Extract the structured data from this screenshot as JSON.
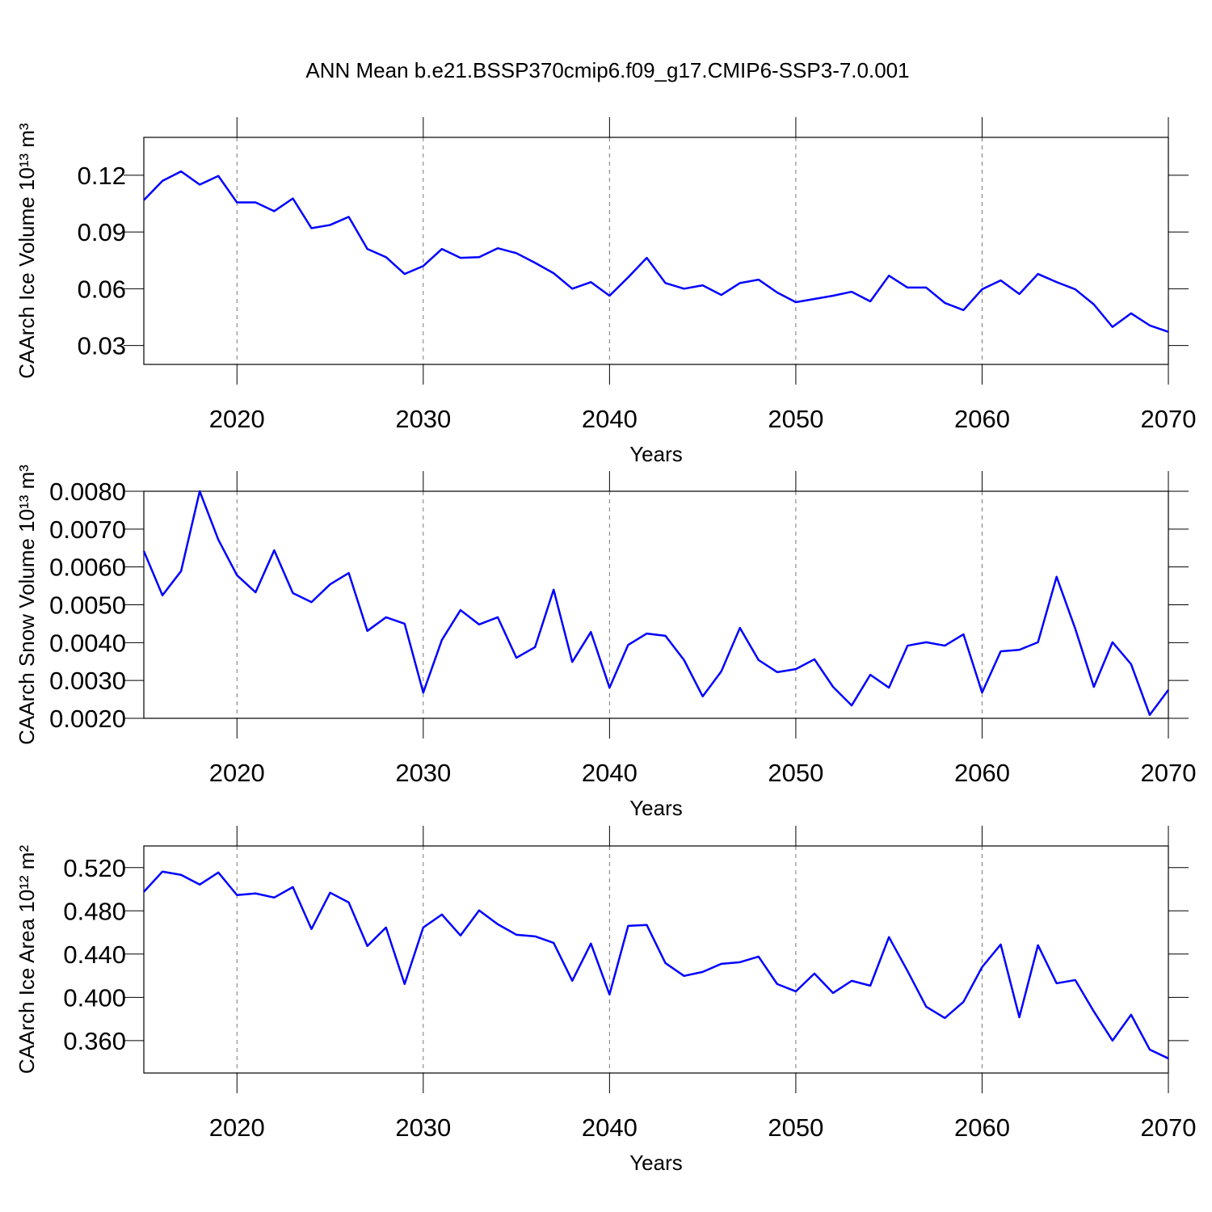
{
  "title": "ANN Mean b.e21.BSSP370cmip6.f09_g17.CMIP6-SSP3-7.0.001",
  "chart_data": [
    {
      "type": "line",
      "ylabel": "CAArch Ice Volume 10¹³ m³",
      "xlabel": "Years",
      "color": "#0000ff",
      "grid": true,
      "xlim": [
        2015,
        2070
      ],
      "xticks": [
        2020,
        2030,
        2040,
        2050,
        2060,
        2070
      ],
      "ylim": [
        0.02,
        0.14
      ],
      "yticks": [
        {
          "value": 0.03,
          "label": "0.03"
        },
        {
          "value": 0.06,
          "label": "0.06"
        },
        {
          "value": 0.09,
          "label": "0.09"
        },
        {
          "value": 0.12,
          "label": "0.12"
        }
      ],
      "x": [
        2015,
        2016,
        2017,
        2018,
        2019,
        2020,
        2021,
        2022,
        2023,
        2024,
        2025,
        2026,
        2027,
        2028,
        2029,
        2030,
        2031,
        2032,
        2033,
        2034,
        2035,
        2036,
        2037,
        2038,
        2039,
        2040,
        2041,
        2042,
        2043,
        2044,
        2045,
        2046,
        2047,
        2048,
        2049,
        2050,
        2051,
        2052,
        2053,
        2054,
        2055,
        2056,
        2057,
        2058,
        2059,
        2060,
        2061,
        2062,
        2063,
        2064,
        2065,
        2066,
        2067,
        2068,
        2069,
        2070
      ],
      "values": [
        0.1068,
        0.117,
        0.122,
        0.115,
        0.1196,
        0.1056,
        0.1056,
        0.101,
        0.1077,
        0.092,
        0.0937,
        0.098,
        0.081,
        0.0767,
        0.0678,
        0.072,
        0.081,
        0.0763,
        0.0767,
        0.0814,
        0.0788,
        0.0737,
        0.0682,
        0.06,
        0.0635,
        0.0563,
        0.066,
        0.0763,
        0.063,
        0.06,
        0.0618,
        0.0567,
        0.063,
        0.0648,
        0.058,
        0.0529,
        0.0546,
        0.0563,
        0.0584,
        0.0533,
        0.0669,
        0.0606,
        0.0606,
        0.0525,
        0.0487,
        0.0597,
        0.0644,
        0.0572,
        0.0678,
        0.0635,
        0.0597,
        0.0517,
        0.0398,
        0.047,
        0.0406,
        0.0372
      ]
    },
    {
      "type": "line",
      "ylabel": "CAArch Snow Volume 10¹³ m³",
      "xlabel": "Years",
      "color": "#0000ff",
      "grid": true,
      "xlim": [
        2015,
        2070
      ],
      "xticks": [
        2020,
        2030,
        2040,
        2050,
        2060,
        2070
      ],
      "ylim": [
        0.002,
        0.008
      ],
      "yticks": [
        {
          "value": 0.002,
          "label": "0.0020"
        },
        {
          "value": 0.003,
          "label": "0.0030"
        },
        {
          "value": 0.004,
          "label": "0.0040"
        },
        {
          "value": 0.005,
          "label": "0.0050"
        },
        {
          "value": 0.006,
          "label": "0.0060"
        },
        {
          "value": 0.007,
          "label": "0.0070"
        },
        {
          "value": 0.008,
          "label": "0.0080"
        }
      ],
      "x": [
        2015,
        2016,
        2017,
        2018,
        2019,
        2020,
        2021,
        2022,
        2023,
        2024,
        2025,
        2026,
        2027,
        2028,
        2029,
        2030,
        2031,
        2032,
        2033,
        2034,
        2035,
        2036,
        2037,
        2038,
        2039,
        2040,
        2041,
        2042,
        2043,
        2044,
        2045,
        2046,
        2047,
        2048,
        2049,
        2050,
        2051,
        2052,
        2053,
        2054,
        2055,
        2056,
        2057,
        2058,
        2059,
        2060,
        2061,
        2062,
        2063,
        2064,
        2065,
        2066,
        2067,
        2068,
        2069,
        2070
      ],
      "values": [
        0.00642,
        0.00525,
        0.00589,
        0.008,
        0.00672,
        0.00578,
        0.00533,
        0.00644,
        0.00531,
        0.00507,
        0.00554,
        0.00584,
        0.00431,
        0.00467,
        0.0045,
        0.00268,
        0.00407,
        0.00486,
        0.00448,
        0.00467,
        0.0036,
        0.00388,
        0.0054,
        0.00349,
        0.00428,
        0.00281,
        0.00394,
        0.00424,
        0.00418,
        0.00354,
        0.00258,
        0.00324,
        0.00439,
        0.00354,
        0.00322,
        0.0033,
        0.00356,
        0.00283,
        0.00234,
        0.00315,
        0.00281,
        0.00392,
        0.00401,
        0.00392,
        0.00422,
        0.00268,
        0.00377,
        0.00381,
        0.00401,
        0.00574,
        0.00437,
        0.00283,
        0.00401,
        0.00343,
        0.00209,
        0.00275
      ]
    },
    {
      "type": "line",
      "ylabel": "CAArch Ice Area 10¹² m²",
      "xlabel": "Years",
      "color": "#0000ff",
      "grid": true,
      "xlim": [
        2015,
        2070
      ],
      "xticks": [
        2020,
        2030,
        2040,
        2050,
        2060,
        2070
      ],
      "ylim": [
        0.33,
        0.54
      ],
      "yticks": [
        {
          "value": 0.36,
          "label": "0.360"
        },
        {
          "value": 0.4,
          "label": "0.400"
        },
        {
          "value": 0.44,
          "label": "0.440"
        },
        {
          "value": 0.48,
          "label": "0.480"
        },
        {
          "value": 0.52,
          "label": "0.520"
        }
      ],
      "x": [
        2015,
        2016,
        2017,
        2018,
        2019,
        2020,
        2021,
        2022,
        2023,
        2024,
        2025,
        2026,
        2027,
        2028,
        2029,
        2030,
        2031,
        2032,
        2033,
        2034,
        2035,
        2036,
        2037,
        2038,
        2039,
        2040,
        2041,
        2042,
        2043,
        2044,
        2045,
        2046,
        2047,
        2048,
        2049,
        2050,
        2051,
        2052,
        2053,
        2054,
        2055,
        2056,
        2057,
        2058,
        2059,
        2060,
        2061,
        2062,
        2063,
        2064,
        2065,
        2066,
        2067,
        2068,
        2069,
        2070
      ],
      "values": [
        0.4976,
        0.5163,
        0.5133,
        0.5043,
        0.5155,
        0.4946,
        0.4961,
        0.4923,
        0.502,
        0.4632,
        0.4968,
        0.4878,
        0.4475,
        0.4646,
        0.4123,
        0.4646,
        0.4766,
        0.4572,
        0.4804,
        0.4676,
        0.4579,
        0.4564,
        0.4504,
        0.4153,
        0.4497,
        0.4026,
        0.4661,
        0.4669,
        0.4317,
        0.4198,
        0.4235,
        0.431,
        0.4325,
        0.4377,
        0.4123,
        0.4055,
        0.422,
        0.404,
        0.4153,
        0.4108,
        0.4557,
        0.4243,
        0.3913,
        0.3809,
        0.3958,
        0.428,
        0.4489,
        0.3816,
        0.4482,
        0.413,
        0.416,
        0.3869,
        0.36,
        0.3839,
        0.3517,
        0.3435
      ]
    }
  ]
}
